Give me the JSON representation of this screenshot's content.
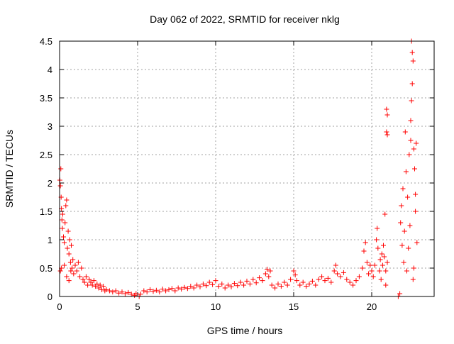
{
  "chart_data": {
    "type": "scatter",
    "title": "Day 062 of 2022, SRMTID for receiver nklg",
    "xlabel": "GPS time / hours",
    "ylabel": "SRMTID / TECUs",
    "xlim": [
      0,
      24
    ],
    "ylim": [
      0,
      4.5
    ],
    "x_ticks": [
      0,
      5,
      10,
      15,
      20
    ],
    "x_tick_labels": [
      "0",
      "5",
      "10",
      "15",
      "20"
    ],
    "y_ticks": [
      0,
      0.5,
      1,
      1.5,
      2,
      2.5,
      3,
      3.5,
      4,
      4.5
    ],
    "y_tick_labels": [
      "0",
      "0.5",
      "1",
      "1.5",
      "2",
      "2.5",
      "3",
      "3.5",
      "4",
      "4.5"
    ],
    "grid": true,
    "marker": "plus",
    "series": [
      {
        "name": "SRMTID",
        "color": "#ff0000",
        "points": [
          [
            0.02,
            2.05
          ],
          [
            0.05,
            1.95
          ],
          [
            0.08,
            2.25
          ],
          [
            0.1,
            1.75
          ],
          [
            0.12,
            1.55
          ],
          [
            0.15,
            1.35
          ],
          [
            0.18,
            1.2
          ],
          [
            0.2,
            1.45
          ],
          [
            0.25,
            1.05
          ],
          [
            0.3,
            0.95
          ],
          [
            0.35,
            1.3
          ],
          [
            0.4,
            1.6
          ],
          [
            0.45,
            1.7
          ],
          [
            0.5,
            0.85
          ],
          [
            0.55,
            1.15
          ],
          [
            0.6,
            0.75
          ],
          [
            0.65,
            1.0
          ],
          [
            0.7,
            0.6
          ],
          [
            0.75,
            0.9
          ],
          [
            0.8,
            0.5
          ],
          [
            0.85,
            0.65
          ],
          [
            0.9,
            0.4
          ],
          [
            0.05,
            0.45
          ],
          [
            0.12,
            0.5
          ],
          [
            0.3,
            0.55
          ],
          [
            0.45,
            0.35
          ],
          [
            0.6,
            0.28
          ],
          [
            0.72,
            0.45
          ],
          [
            1.0,
            0.55
          ],
          [
            1.1,
            0.45
          ],
          [
            1.2,
            0.6
          ],
          [
            1.3,
            0.35
          ],
          [
            1.4,
            0.5
          ],
          [
            1.5,
            0.3
          ],
          [
            1.6,
            0.25
          ],
          [
            1.7,
            0.35
          ],
          [
            1.8,
            0.2
          ],
          [
            1.9,
            0.3
          ],
          [
            2.0,
            0.25
          ],
          [
            2.1,
            0.2
          ],
          [
            2.2,
            0.28
          ],
          [
            2.3,
            0.18
          ],
          [
            2.4,
            0.22
          ],
          [
            2.5,
            0.15
          ],
          [
            2.6,
            0.2
          ],
          [
            2.7,
            0.12
          ],
          [
            2.8,
            0.18
          ],
          [
            2.9,
            0.1
          ],
          [
            3.0,
            0.12
          ],
          [
            3.2,
            0.1
          ],
          [
            3.4,
            0.08
          ],
          [
            3.6,
            0.1
          ],
          [
            3.8,
            0.06
          ],
          [
            4.0,
            0.08
          ],
          [
            4.2,
            0.05
          ],
          [
            4.4,
            0.07
          ],
          [
            4.6,
            0.04
          ],
          [
            4.8,
            0.02
          ],
          [
            4.9,
            0.05
          ],
          [
            5.1,
            0.0
          ],
          [
            5.2,
            0.04
          ],
          [
            5.4,
            0.1
          ],
          [
            5.6,
            0.08
          ],
          [
            5.8,
            0.12
          ],
          [
            6.0,
            0.09
          ],
          [
            6.2,
            0.11
          ],
          [
            6.4,
            0.08
          ],
          [
            6.6,
            0.13
          ],
          [
            6.8,
            0.1
          ],
          [
            7.0,
            0.12
          ],
          [
            7.2,
            0.14
          ],
          [
            7.4,
            0.1
          ],
          [
            7.6,
            0.15
          ],
          [
            7.8,
            0.13
          ],
          [
            8.0,
            0.16
          ],
          [
            8.2,
            0.14
          ],
          [
            8.4,
            0.18
          ],
          [
            8.6,
            0.15
          ],
          [
            8.8,
            0.2
          ],
          [
            9.0,
            0.17
          ],
          [
            9.2,
            0.22
          ],
          [
            9.4,
            0.19
          ],
          [
            9.6,
            0.25
          ],
          [
            9.8,
            0.21
          ],
          [
            10.0,
            0.28
          ],
          [
            10.2,
            0.18
          ],
          [
            10.4,
            0.22
          ],
          [
            10.6,
            0.15
          ],
          [
            10.8,
            0.2
          ],
          [
            11.0,
            0.17
          ],
          [
            11.2,
            0.23
          ],
          [
            11.4,
            0.19
          ],
          [
            11.6,
            0.25
          ],
          [
            11.8,
            0.2
          ],
          [
            12.0,
            0.27
          ],
          [
            12.2,
            0.22
          ],
          [
            12.4,
            0.3
          ],
          [
            12.6,
            0.24
          ],
          [
            12.8,
            0.33
          ],
          [
            13.0,
            0.28
          ],
          [
            13.2,
            0.4
          ],
          [
            13.3,
            0.48
          ],
          [
            13.4,
            0.35
          ],
          [
            13.5,
            0.45
          ],
          [
            13.6,
            0.2
          ],
          [
            13.8,
            0.15
          ],
          [
            14.0,
            0.22
          ],
          [
            14.2,
            0.18
          ],
          [
            14.4,
            0.25
          ],
          [
            14.6,
            0.2
          ],
          [
            14.8,
            0.3
          ],
          [
            15.0,
            0.45
          ],
          [
            15.1,
            0.38
          ],
          [
            15.2,
            0.28
          ],
          [
            15.4,
            0.2
          ],
          [
            15.6,
            0.25
          ],
          [
            15.8,
            0.18
          ],
          [
            16.0,
            0.22
          ],
          [
            16.2,
            0.27
          ],
          [
            16.4,
            0.2
          ],
          [
            16.6,
            0.3
          ],
          [
            16.8,
            0.35
          ],
          [
            17.0,
            0.28
          ],
          [
            17.2,
            0.32
          ],
          [
            17.4,
            0.25
          ],
          [
            17.6,
            0.45
          ],
          [
            17.7,
            0.55
          ],
          [
            17.8,
            0.4
          ],
          [
            18.0,
            0.35
          ],
          [
            18.2,
            0.42
          ],
          [
            18.4,
            0.3
          ],
          [
            18.6,
            0.25
          ],
          [
            18.8,
            0.2
          ],
          [
            19.0,
            0.28
          ],
          [
            19.2,
            0.35
          ],
          [
            19.4,
            0.5
          ],
          [
            19.5,
            0.8
          ],
          [
            19.6,
            0.95
          ],
          [
            19.7,
            0.6
          ],
          [
            19.8,
            0.4
          ],
          [
            19.9,
            0.55
          ],
          [
            20.0,
            0.45
          ],
          [
            20.1,
            0.35
          ],
          [
            20.2,
            0.55
          ],
          [
            20.3,
            1.0
          ],
          [
            20.35,
            1.2
          ],
          [
            20.4,
            0.85
          ],
          [
            20.5,
            0.45
          ],
          [
            20.55,
            0.65
          ],
          [
            20.6,
            0.3
          ],
          [
            20.65,
            0.75
          ],
          [
            20.7,
            0.55
          ],
          [
            20.75,
            0.9
          ],
          [
            20.8,
            0.7
          ],
          [
            20.85,
            1.45
          ],
          [
            20.9,
            0.2
          ],
          [
            20.95,
            3.3
          ],
          [
            21.0,
            3.2
          ],
          [
            20.95,
            2.9
          ],
          [
            21.0,
            2.85
          ],
          [
            20.9,
            0.45
          ],
          [
            21.0,
            0.6
          ],
          [
            21.7,
            0.0
          ],
          [
            21.8,
            0.05
          ],
          [
            21.85,
            1.3
          ],
          [
            21.9,
            1.6
          ],
          [
            21.95,
            0.9
          ],
          [
            22.0,
            1.9
          ],
          [
            22.05,
            0.6
          ],
          [
            22.1,
            1.15
          ],
          [
            22.15,
            2.9
          ],
          [
            22.2,
            2.2
          ],
          [
            22.25,
            0.45
          ],
          [
            22.3,
            1.75
          ],
          [
            22.35,
            0.85
          ],
          [
            22.4,
            2.5
          ],
          [
            22.45,
            1.25
          ],
          [
            22.5,
            3.1
          ],
          [
            22.55,
            4.5
          ],
          [
            22.6,
            4.3
          ],
          [
            22.65,
            4.15
          ],
          [
            22.6,
            3.75
          ],
          [
            22.55,
            3.45
          ],
          [
            22.7,
            2.6
          ],
          [
            22.75,
            2.25
          ],
          [
            22.8,
            1.5
          ],
          [
            22.85,
            2.7
          ],
          [
            22.9,
            0.95
          ],
          [
            22.7,
            0.5
          ],
          [
            22.65,
            0.3
          ],
          [
            22.8,
            1.8
          ],
          [
            22.5,
            2.75
          ]
        ]
      }
    ]
  }
}
